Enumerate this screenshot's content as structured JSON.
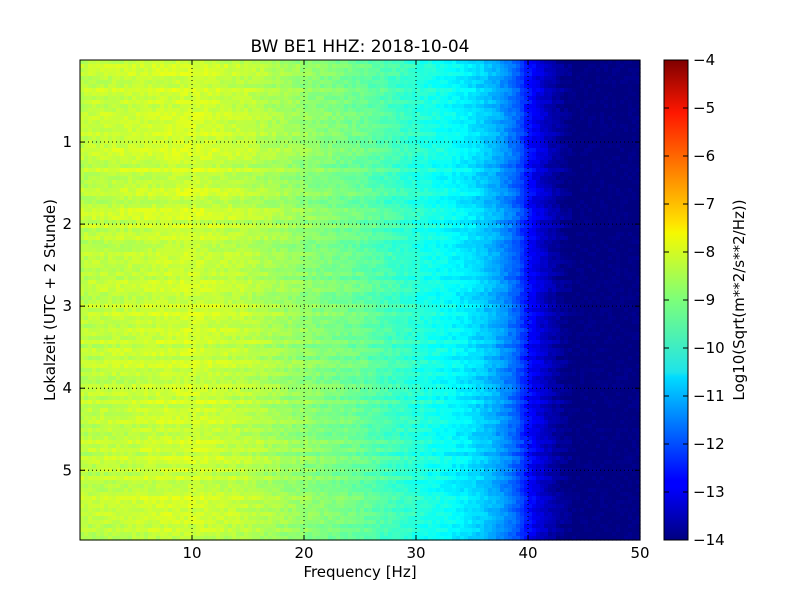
{
  "chart_data": {
    "type": "heatmap",
    "title": "BW BE1 HHZ: 2018-10-04",
    "xlabel": "Frequency [Hz]",
    "ylabel": "Lokalzeit (UTC + 2 Stunde)",
    "colorbar_label": "Log10(Sqrt(m**2/s**2/Hz))",
    "xlim": [
      0,
      50
    ],
    "ylim": [
      5.85,
      0
    ],
    "y_inverted": true,
    "x_ticks": [
      10,
      20,
      30,
      40,
      50
    ],
    "x_tick_labels": [
      "10",
      "20",
      "30",
      "40",
      "50"
    ],
    "y_ticks": [
      1,
      2,
      3,
      4,
      5
    ],
    "y_tick_labels": [
      "1",
      "2",
      "3",
      "4",
      "5"
    ],
    "colorbar_range": [
      -14,
      -4
    ],
    "colorbar_ticks": [
      -4,
      -5,
      -6,
      -7,
      -8,
      -9,
      -10,
      -11,
      -12,
      -13,
      -14
    ],
    "colorbar_tick_labels": [
      "−4",
      "−5",
      "−6",
      "−7",
      "−8",
      "−9",
      "−10",
      "−11",
      "−12",
      "−13",
      "−14"
    ],
    "colormap": "jet",
    "grid": true,
    "profile_freq_hz": [
      0,
      5,
      10,
      15,
      20,
      25,
      28,
      31,
      33,
      35,
      37,
      39,
      40,
      41,
      42,
      43,
      44,
      46,
      50
    ],
    "profile_log10_psd": [
      -8.4,
      -8.3,
      -8.2,
      -8.4,
      -8.8,
      -9.2,
      -9.6,
      -10.0,
      -10.2,
      -10.5,
      -11.0,
      -11.8,
      -12.6,
      -13.1,
      -13.5,
      -13.8,
      -14.0,
      -14.0,
      -14.0
    ]
  }
}
